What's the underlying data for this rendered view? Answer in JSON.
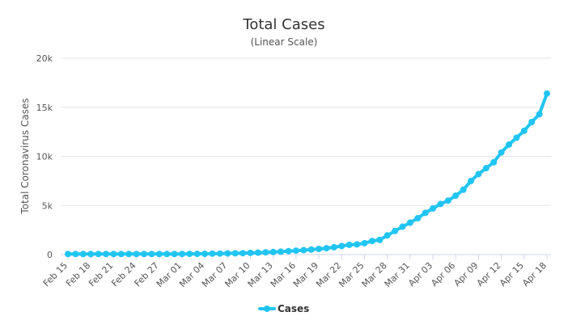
{
  "chart_data": {
    "type": "line",
    "title": "Total Cases",
    "subtitle": "(Linear Scale)",
    "xlabel": "",
    "ylabel": "Total Coronavirus Cases",
    "ylim": [
      0,
      20000
    ],
    "yticks": [
      0,
      5000,
      10000,
      15000,
      20000
    ],
    "ytick_labels": [
      "0",
      "5k",
      "10k",
      "15k",
      "20k"
    ],
    "x_tick_labels": [
      "Feb 15",
      "Feb 18",
      "Feb 21",
      "Feb 24",
      "Feb 27",
      "Mar 01",
      "Mar 04",
      "Mar 07",
      "Mar 10",
      "Mar 13",
      "Mar 16",
      "Mar 19",
      "Mar 22",
      "Mar 25",
      "Mar 28",
      "Mar 31",
      "Apr 03",
      "Apr 06",
      "Apr 09",
      "Apr 12",
      "Apr 15",
      "Apr 18"
    ],
    "grid": true,
    "legend": "bottom-center",
    "colors": {
      "series": "#21c5f2",
      "grid": "#e6e6e6",
      "axis": "#ccd6eb"
    },
    "series": [
      {
        "name": "Cases",
        "values": [
          56,
          56,
          56,
          56,
          56,
          56,
          56,
          56,
          56,
          56,
          56,
          56,
          56,
          58,
          60,
          63,
          70,
          78,
          85,
          95,
          105,
          120,
          135,
          150,
          170,
          195,
          230,
          260,
          300,
          350,
          400,
          450,
          510,
          580,
          650,
          750,
          870,
          1000,
          1040,
          1160,
          1380,
          1500,
          1950,
          2400,
          2850,
          3250,
          3700,
          4250,
          4700,
          5150,
          5500,
          6000,
          6600,
          7500,
          8200,
          8800,
          9400,
          10400,
          11200,
          11900,
          12600,
          13500,
          14300,
          16400
        ]
      }
    ]
  }
}
